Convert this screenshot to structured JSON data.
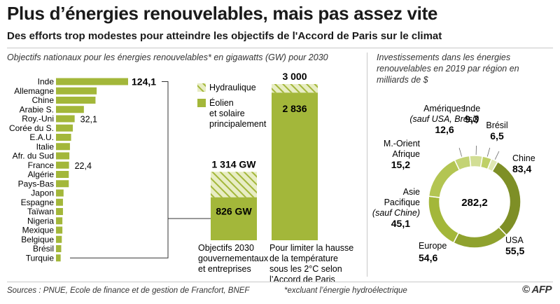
{
  "header": {
    "title": "Plus d’énergies renouvelables, mais pas assez vite",
    "subtitle": "Des efforts trop modestes pour atteindre les objectifs de l'Accord de Paris sur le climat"
  },
  "left_panel": {
    "label": "Objectifs nationaux pour les énergies renouvelables* en gigawatts (GW) pour 2030"
  },
  "right_panel": {
    "label": "Investissements dans les énergies renouvelables en 2019 par région en milliards de $"
  },
  "footer": {
    "source": "Sources : PNUE, Ecole de finance et de gestion de Francfort, BNEF",
    "footnote": "*excluant l’énergie hydroélectrique",
    "logo": "© AFP"
  },
  "colors": {
    "bar_green": "#a3b73a",
    "donut_dark": "#7e8f26",
    "donut_light": "#c9d88c",
    "hatch_bg": "#e8edc4"
  },
  "chart_data": [
    {
      "type": "bar",
      "orientation": "horizontal",
      "categories": [
        "Inde",
        "Allemagne",
        "Chine",
        "Arabie S.",
        "Roy.-Uni",
        "Corée du S.",
        "E.A.U.",
        "Italie",
        "Afr. du Sud",
        "France",
        "Algérie",
        "Pays-Bas",
        "Japon",
        "Espagne",
        "Taïwan",
        "Nigeria",
        "Mexique",
        "Belgique",
        "Brésil",
        "Turquie"
      ],
      "values": [
        124.1,
        70,
        68,
        48,
        32.1,
        29,
        26,
        24,
        23,
        22.4,
        22,
        22,
        13,
        12,
        12,
        11,
        11,
        10,
        9,
        8
      ],
      "data_labels": {
        "Inde": "124,1",
        "Roy.-Uni": "32,1",
        "France": "22,4"
      },
      "color": "#a3b73a"
    },
    {
      "type": "bar",
      "stacked": true,
      "categories": [
        "Objectifs 2030 gouvernementaux et entreprises",
        "Pour limiter la hausse de la température sous les 2°C selon l’Accord de Paris"
      ],
      "series": [
        {
          "name": "Éolien et solaire principalement",
          "values": [
            826,
            2836
          ],
          "labels": [
            "826 GW",
            "2 836"
          ]
        },
        {
          "name": "Hydraulique",
          "values": [
            488,
            164
          ]
        }
      ],
      "totals": [
        "1 314 GW",
        "3 000"
      ],
      "ylim": [
        0,
        3000
      ]
    },
    {
      "type": "pie",
      "donut": true,
      "center_label": "282,2",
      "slices": [
        {
          "name": "Chine",
          "value": 83.4,
          "value_label": "83,4",
          "color": "#7e8f26"
        },
        {
          "name": "USA",
          "value": 55.5,
          "value_label": "55,5",
          "color": "#8fa22e"
        },
        {
          "name": "Europe",
          "value": 54.6,
          "value_label": "54,6",
          "color": "#a3b73a"
        },
        {
          "name": "Asie Pacifique",
          "note": "(sauf Chine)",
          "value": 45.1,
          "value_label": "45,1",
          "color": "#b3c552"
        },
        {
          "name": "M.-Orient Afrique",
          "value": 15.2,
          "value_label": "15,2",
          "color": "#c3d374"
        },
        {
          "name": "Amériques",
          "note": "(sauf USA, Brésil)",
          "value": 12.6,
          "value_label": "12,6",
          "color": "#d2de95"
        },
        {
          "name": "Inde",
          "value": 9.3,
          "value_label": "9,3",
          "color": "#bfd067"
        },
        {
          "name": "Brésil",
          "value": 6.5,
          "value_label": "6,5",
          "color": "#dfe8b2"
        }
      ]
    }
  ]
}
